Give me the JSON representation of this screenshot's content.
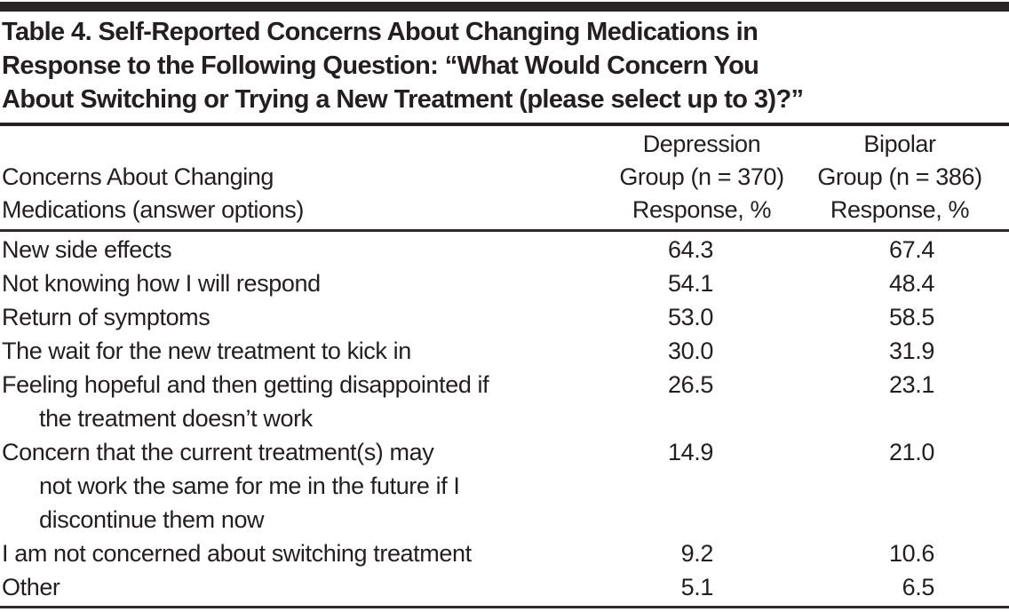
{
  "title_lines": [
    "Table 4. Self-Reported Concerns About Changing Medications in",
    "Response to the Following Question: “What Would Concern You",
    "About Switching or Trying a New Treatment (please select up to 3)?”"
  ],
  "header": {
    "label_lines": [
      "Concerns About Changing",
      "Medications (answer options)"
    ],
    "depression_lines": [
      "Depression",
      "Group (n = 370)",
      "Response, %"
    ],
    "bipolar_lines": [
      "Bipolar",
      "Group (n = 386)",
      "Response, %"
    ]
  },
  "rows": [
    {
      "label_lines": [
        "New side effects"
      ],
      "depression": "64.3",
      "bipolar": "67.4"
    },
    {
      "label_lines": [
        "Not knowing how I will respond"
      ],
      "depression": "54.1",
      "bipolar": "48.4"
    },
    {
      "label_lines": [
        "Return of symptoms"
      ],
      "depression": "53.0",
      "bipolar": "58.5"
    },
    {
      "label_lines": [
        "The wait for the new treatment to kick in"
      ],
      "depression": "30.0",
      "bipolar": "31.9"
    },
    {
      "label_lines": [
        "Feeling hopeful and then getting disappointed if",
        "the treatment doesn’t work"
      ],
      "depression": "26.5",
      "bipolar": "23.1"
    },
    {
      "label_lines": [
        "Concern that the current treatment(s) may",
        "not work the same for me in the future if I",
        "discontinue them now"
      ],
      "depression": "14.9",
      "bipolar": "21.0"
    },
    {
      "label_lines": [
        "I am not concerned about switching treatment"
      ],
      "depression": "9.2",
      "bipolar": "10.6"
    },
    {
      "label_lines": [
        "Other"
      ],
      "depression": "5.1",
      "bipolar": "6.5"
    }
  ],
  "colors": {
    "text": "#231f20",
    "top_bar": "#292526",
    "rule": "#2e2a2b"
  }
}
